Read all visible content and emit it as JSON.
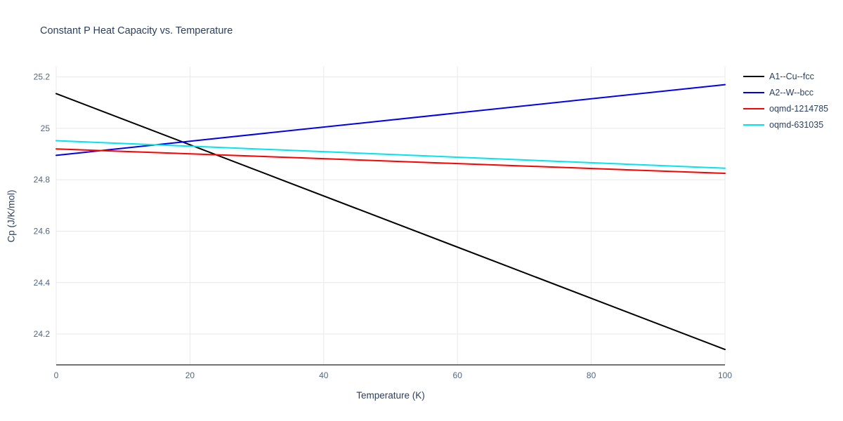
{
  "chart_data": {
    "type": "line",
    "title": "Constant P Heat Capacity vs. Temperature",
    "xlabel": "Temperature (K)",
    "ylabel": "Cp (J/K/mol)",
    "xlim": [
      0,
      100
    ],
    "ylim": [
      24.08,
      25.24
    ],
    "xticks": [
      0,
      20,
      40,
      60,
      80,
      100
    ],
    "yticks": [
      24.2,
      24.4,
      24.6,
      24.8,
      25,
      25.2
    ],
    "grid": true,
    "legend_position": "top-right",
    "series": [
      {
        "name": "A1--Cu--fcc",
        "color": "#000000",
        "x": [
          0,
          100
        ],
        "y": [
          25.135,
          24.14
        ]
      },
      {
        "name": "A2--W--bcc",
        "color": "#0000ee",
        "x": [
          0,
          100
        ],
        "y": [
          24.895,
          25.17
        ]
      },
      {
        "name": "oqmd-1214785",
        "color": "#ff0000",
        "x": [
          0,
          100
        ],
        "y": [
          24.92,
          24.825
        ]
      },
      {
        "name": "oqmd-631035",
        "color": "#00e5ee",
        "x": [
          0,
          100
        ],
        "y": [
          24.952,
          24.845
        ]
      }
    ]
  },
  "style": {
    "grid_color": "#e8e8e8",
    "axis_line_color": "#444444",
    "tick_label_color": "#506784",
    "line_width": 2
  }
}
